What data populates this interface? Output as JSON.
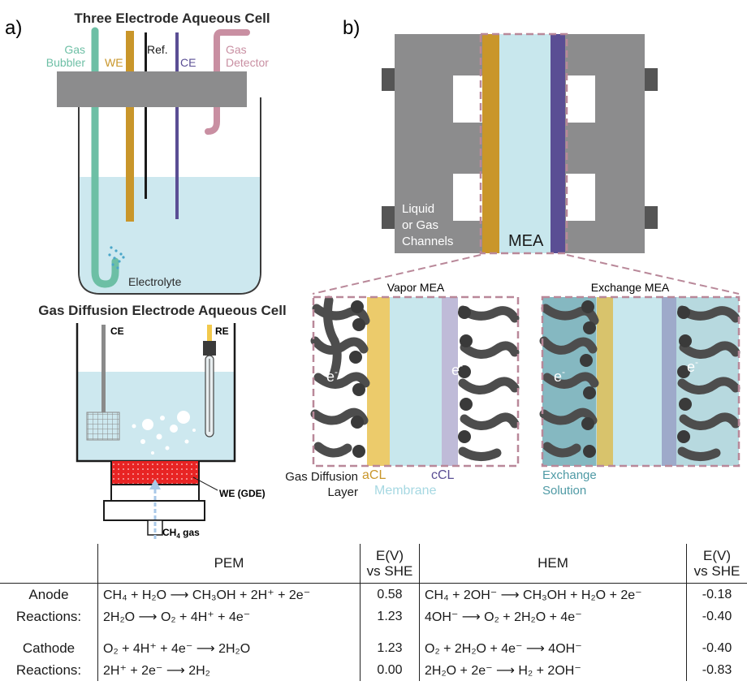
{
  "panel_a": {
    "label": "a)",
    "three_electrode": {
      "title": "Three Electrode Aqueous Cell",
      "gas_bubbler_line1": "Gas",
      "gas_bubbler_line2": "Bubbler",
      "we": "WE",
      "ref": "Ref.",
      "ce": "CE",
      "gas_detector_line1": "Gas",
      "gas_detector_line2": "Detector",
      "electrolyte": "Electrolyte"
    },
    "gde": {
      "title": "Gas Diffusion Electrode Aqueous Cell",
      "ce": "CE",
      "re": "RE",
      "we_gde": "WE (GDE)",
      "ch4_gas": "CH",
      "ch4_sub": "4",
      "ch4_gas_suffix": " gas"
    }
  },
  "panel_b": {
    "label": "b)",
    "channels_line1": "Liquid",
    "channels_line2": "or Gas",
    "channels_line3": "Channels",
    "mea": "MEA",
    "vapor_mea": "Vapor MEA",
    "exchange_mea": "Exchange MEA",
    "electron": "e",
    "electron_sup": "-",
    "gdl_line1": "Gas Diffusion",
    "gdl_line2": "Layer",
    "acl": "aCL",
    "ccl": "cCL",
    "membrane": "Membrane",
    "exchange_line1": "Exchange",
    "exchange_line2": "Solution"
  },
  "colors": {
    "gas_bubbler": "#6dbfa5",
    "working_electrode": "#c9962a",
    "counter_electrode": "#5a4e94",
    "gas_detector": "#c98fa2",
    "electrolyte": "#cde8ef",
    "housing": "#8c8c8d",
    "gde_red": "#e82424",
    "membrane": "#c8e7ed",
    "dashed_outline": "#b98899",
    "exchange_solution": "#4f9aa5",
    "gdl_fiber": "#4d4d4d"
  },
  "table": {
    "headers": {
      "pem": "PEM",
      "e_line1": "E(V)",
      "e_line2": "vs SHE",
      "hem": "HEM"
    },
    "anode_line1": "Anode",
    "anode_line2": "Reactions:",
    "cathode_line1": "Cathode",
    "cathode_line2": "Reactions:",
    "rows": [
      {
        "pem": "CH₄ + H₂O ⟶ CH₃OH + 2H⁺ + 2e⁻",
        "pem_e": "0.58",
        "hem": "CH₄ + 2OH⁻ ⟶ CH₃OH + H₂O + 2e⁻",
        "hem_e": "-0.18"
      },
      {
        "pem": "2H₂O ⟶ O₂ + 4H⁺ + 4e⁻",
        "pem_e": "1.23",
        "hem": "4OH⁻ ⟶ O₂ + 2H₂O + 4e⁻",
        "hem_e": "-0.40"
      },
      {
        "pem": "O₂ + 4H⁺ + 4e⁻ ⟶ 2H₂O",
        "pem_e": "1.23",
        "hem": "O₂ + 2H₂O + 4e⁻ ⟶ 4OH⁻",
        "hem_e": "-0.40"
      },
      {
        "pem": "2H⁺ + 2e⁻ ⟶ 2H₂",
        "pem_e": "0.00",
        "hem": "2H₂O + 2e⁻ ⟶ H₂ + 2OH⁻",
        "hem_e": "-0.83"
      }
    ]
  }
}
